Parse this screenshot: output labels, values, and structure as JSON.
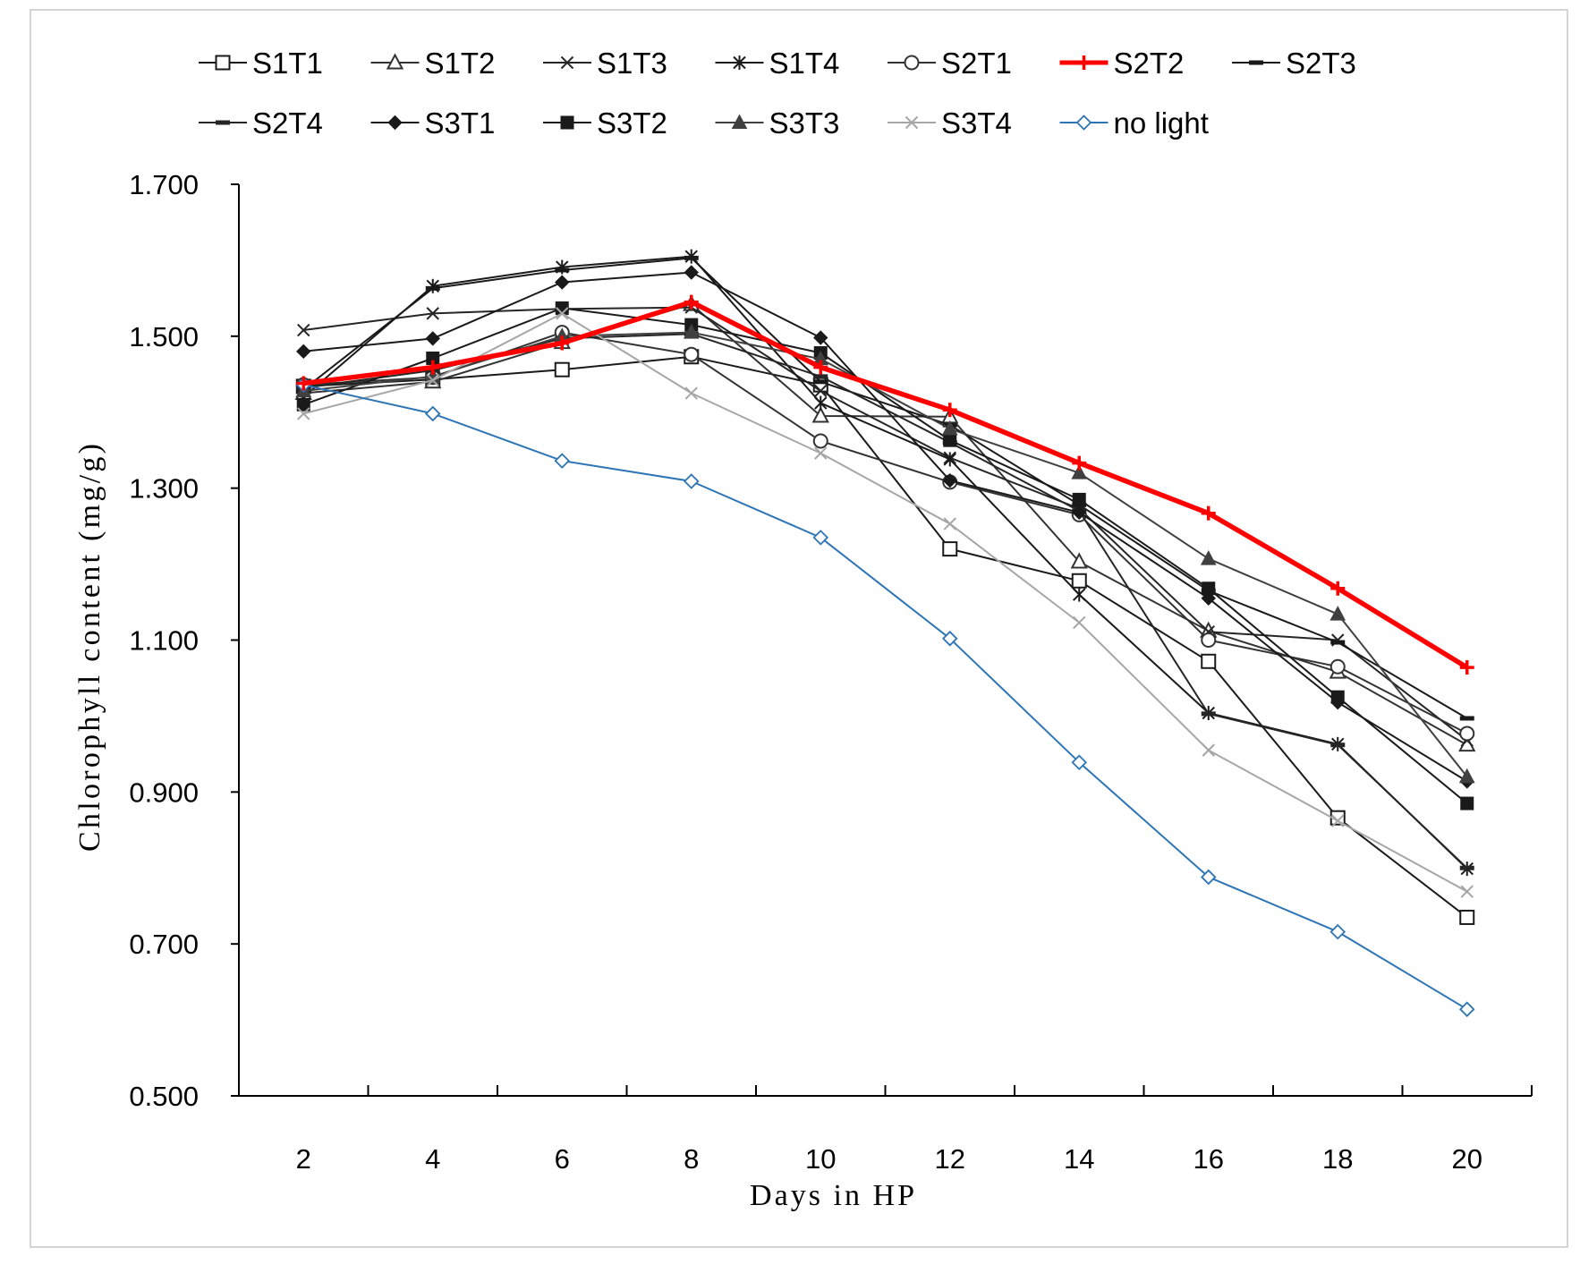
{
  "chart_data": {
    "type": "line",
    "title": "",
    "xlabel": "Days in HP",
    "ylabel": "Chlorophyll content (mg/g)",
    "categories": [
      2,
      4,
      6,
      8,
      10,
      12,
      14,
      16,
      18,
      20
    ],
    "ylim": [
      0.5,
      1.7
    ],
    "yticks": [
      0.5,
      0.7,
      0.9,
      1.1,
      1.3,
      1.5,
      1.7
    ],
    "grid": false,
    "legend": "top",
    "series": [
      {
        "name": "S1T1",
        "marker": "open-square",
        "color": "#1a1a1a",
        "values": [
          1.434,
          1.443,
          1.456,
          1.473,
          1.436,
          1.22,
          1.178,
          1.072,
          0.866,
          0.735
        ]
      },
      {
        "name": "S1T2",
        "marker": "open-triangle",
        "color": "#333333",
        "values": [
          1.425,
          1.44,
          1.492,
          1.542,
          1.395,
          1.394,
          1.203,
          1.112,
          1.058,
          0.962
        ]
      },
      {
        "name": "S1T3",
        "marker": "x",
        "color": "#262626",
        "values": [
          1.508,
          1.53,
          1.536,
          1.538,
          1.428,
          1.34,
          1.273,
          1.111,
          1.1,
          0.968
        ]
      },
      {
        "name": "S1T4",
        "marker": "asterisk",
        "color": "#1a1a1a",
        "values": [
          1.42,
          1.566,
          1.591,
          1.605,
          1.412,
          1.338,
          1.16,
          1.004,
          0.963,
          0.799
        ]
      },
      {
        "name": "S2T1",
        "marker": "open-circle",
        "color": "#333333",
        "values": [
          1.436,
          1.446,
          1.505,
          1.476,
          1.362,
          1.308,
          1.265,
          1.1,
          1.065,
          0.977
        ]
      },
      {
        "name": "S2T2",
        "marker": "plus",
        "color": "#ff0000",
        "highlight": true,
        "values": [
          1.438,
          1.459,
          1.491,
          1.545,
          1.459,
          1.403,
          1.333,
          1.267,
          1.168,
          1.064
        ]
      },
      {
        "name": "S2T3",
        "marker": "dash",
        "color": "#1a1a1a",
        "values": [
          1.43,
          1.563,
          1.587,
          1.603,
          1.44,
          1.383,
          1.278,
          1.165,
          1.097,
          0.997
        ]
      },
      {
        "name": "S2T4",
        "marker": "dash",
        "color": "#262626",
        "values": [
          1.432,
          1.455,
          1.497,
          1.503,
          1.447,
          1.36,
          1.27,
          1.003,
          0.962,
          0.8
        ]
      },
      {
        "name": "S3T1",
        "marker": "filled-diamond",
        "color": "#1a1a1a",
        "values": [
          1.48,
          1.497,
          1.571,
          1.584,
          1.498,
          1.31,
          1.268,
          1.155,
          1.018,
          0.914
        ]
      },
      {
        "name": "S3T2",
        "marker": "filled-square",
        "color": "#1a1a1a",
        "values": [
          1.41,
          1.471,
          1.537,
          1.515,
          1.478,
          1.363,
          1.285,
          1.168,
          1.025,
          0.885
        ]
      },
      {
        "name": "S3T3",
        "marker": "filled-triangle",
        "color": "#404040",
        "values": [
          1.428,
          1.447,
          1.5,
          1.505,
          1.47,
          1.378,
          1.32,
          1.207,
          1.134,
          0.92
        ]
      },
      {
        "name": "S3T4",
        "marker": "x",
        "color": "#a6a6a6",
        "values": [
          1.398,
          1.442,
          1.53,
          1.425,
          1.346,
          1.253,
          1.123,
          0.955,
          0.862,
          0.769
        ]
      },
      {
        "name": "no light",
        "marker": "open-diamond",
        "color": "#2e75b6",
        "values": [
          1.436,
          1.398,
          1.336,
          1.309,
          1.235,
          1.102,
          0.939,
          0.788,
          0.716,
          0.614
        ]
      }
    ]
  }
}
